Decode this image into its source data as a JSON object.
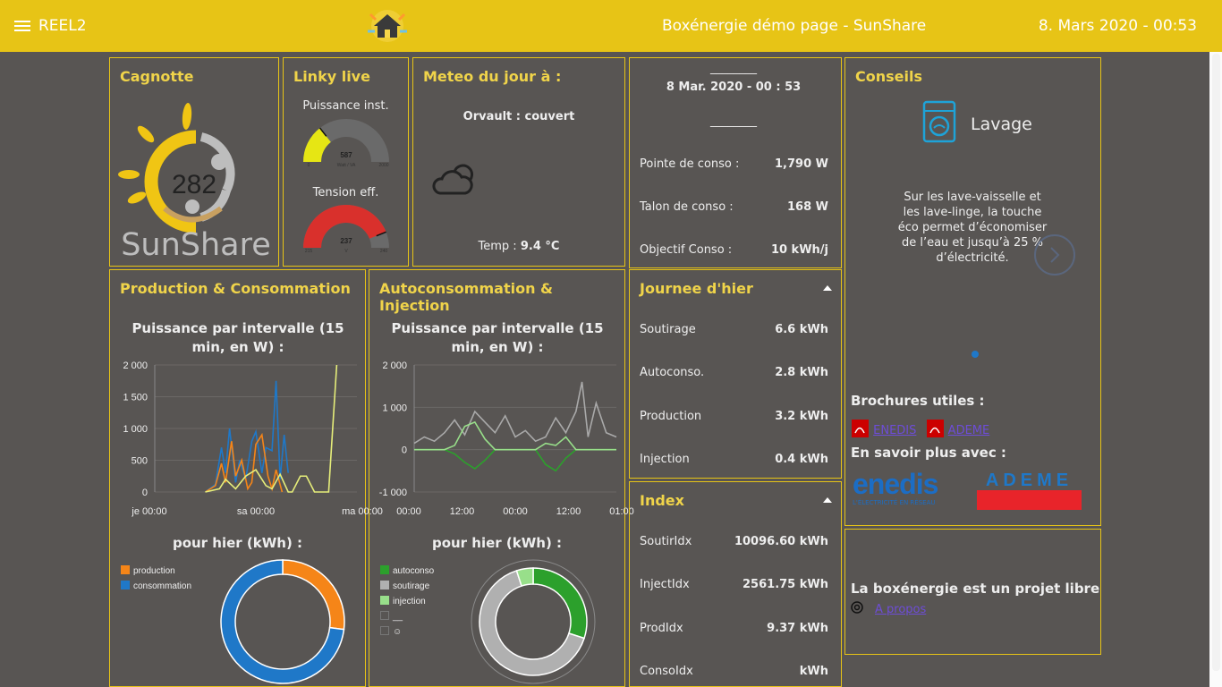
{
  "header": {
    "app_name": "REEL2",
    "page_title": "Boxénergie démo page - SunShare",
    "datetime": "8. Mars 2020 - 00:53"
  },
  "cagnotte": {
    "title": "Cagnotte",
    "value": "282",
    "brand": "SunShare"
  },
  "linky": {
    "title": "Linky live",
    "power_label": "Puissance inst.",
    "power_value": "587",
    "power_unit": "Watt / VA",
    "power_min": "0",
    "power_max": "2000",
    "power_level": 0.29,
    "voltage_label": "Tension eff.",
    "voltage_value": "237",
    "voltage_unit": "V",
    "voltage_min": "215",
    "voltage_max": "240",
    "voltage_level": 0.88
  },
  "meteo": {
    "title": "Meteo du jour à :",
    "location": "Orvault : couvert",
    "temp_label": "Temp :",
    "temp_value": "9.4 °C",
    "icon": "cloudy-night-icon"
  },
  "summary": {
    "line_top": "________",
    "datetime": "8 Mar. 2020 - 00 : 53",
    "line_bottom": "________",
    "rows": [
      {
        "label": "Pointe de conso :",
        "value": "1,790 W"
      },
      {
        "label": "Talon de conso :",
        "value": "168 W"
      },
      {
        "label": "Objectif Conso :",
        "value": "10 kWh/j"
      }
    ]
  },
  "conseils": {
    "title": "Conseils",
    "tip_title": "Lavage",
    "tip_text": "Sur les lave-vaisselle et les lave-linge, la touche éco permet d’économiser de l’eau et jusqu’à 25 % d’électricité.",
    "brochures_title": "Brochures utiles :",
    "brochure_links": [
      "ENEDIS",
      "ADEME"
    ],
    "more_title": "En savoir plus avec :",
    "enedis_logo": "enedis",
    "enedis_tagline": "L'ÉLECTRICITÉ EN RÉSEAU",
    "ademe_logo": "ADEME"
  },
  "projet": {
    "text": "La boxénergie est un projet libre",
    "link": "A propos"
  },
  "production": {
    "title": "Production & Consommation",
    "chart_title": "Puissance par intervalle (15 min, en W) :",
    "donut_title": "pour hier (kWh) :",
    "legend": [
      "production",
      "consommation"
    ]
  },
  "autoconso": {
    "title": "Autoconsommation & Injection",
    "chart_title": "Puissance par intervalle (15 min, en W) :",
    "donut_title": "pour hier (kWh) :",
    "legend": [
      "autoconso",
      "soutirage",
      "injection",
      "__",
      "☺"
    ]
  },
  "journee": {
    "title": "Journee d'hier",
    "rows": [
      {
        "label": "Soutirage",
        "value": "6.6 kWh"
      },
      {
        "label": "Autoconso.",
        "value": "2.8 kWh"
      },
      {
        "label": "Production",
        "value": "3.2 kWh"
      },
      {
        "label": "Injection",
        "value": "0.4 kWh"
      }
    ]
  },
  "index": {
    "title": "Index",
    "rows": [
      {
        "label": "SoutirIdx",
        "value": "10096.60 kWh"
      },
      {
        "label": "InjectIdx",
        "value": "2561.75 kWh"
      },
      {
        "label": "ProdIdx",
        "value": "9.37 kWh"
      },
      {
        "label": "ConsoIdx",
        "value": "kWh"
      }
    ]
  },
  "colors": {
    "accent": "#e7c416",
    "background": "#585553",
    "production": "#f58518",
    "consommation": "#1f78c8",
    "autoconso": "#2ca02c",
    "soutirage": "#b0b0b0",
    "injection": "#98df8a"
  },
  "chart_data": [
    {
      "type": "line",
      "title": "Puissance par intervalle (15 min, en W) :",
      "x_ticks": [
        "je 00:00",
        "sa 00:00",
        "ma 00:00"
      ],
      "ylim": [
        0,
        2000
      ],
      "y_ticks": [
        "2 000",
        "1 500",
        "1 000",
        "500",
        "0"
      ],
      "series": [
        {
          "name": "consommation",
          "x": [
            0.25,
            0.3,
            0.33,
            0.35,
            0.37,
            0.4,
            0.42,
            0.45,
            0.48,
            0.5,
            0.53,
            0.55,
            0.58,
            0.6,
            0.62,
            0.64,
            0.66
          ],
          "values": [
            0,
            120,
            700,
            300,
            1000,
            150,
            500,
            200,
            800,
            950,
            300,
            700,
            650,
            1750,
            200,
            900,
            300
          ]
        },
        {
          "name": "production",
          "x": [
            0.25,
            0.3,
            0.33,
            0.35,
            0.38,
            0.4,
            0.43,
            0.46,
            0.48,
            0.5,
            0.53,
            0.56,
            0.58,
            0.6,
            0.63
          ],
          "values": [
            0,
            100,
            450,
            150,
            800,
            250,
            500,
            50,
            150,
            750,
            900,
            250,
            50,
            350,
            0
          ]
        },
        {
          "name": "__",
          "x": [
            0.25,
            0.32,
            0.35,
            0.4,
            0.45,
            0.5,
            0.55,
            0.58,
            0.62,
            0.66,
            0.68,
            0.72,
            0.75,
            0.79,
            0.82,
            0.86,
            0.9
          ],
          "values": [
            0,
            50,
            200,
            50,
            250,
            350,
            100,
            50,
            280,
            0,
            0,
            250,
            250,
            0,
            0,
            0,
            2000
          ]
        }
      ]
    },
    {
      "type": "line",
      "title": "Puissance par intervalle (15 min, en W) :",
      "x_ticks": [
        "00:00",
        "12:00",
        "00:00",
        "12:00",
        "01:00"
      ],
      "ylim": [
        -1000,
        2000
      ],
      "y_ticks": [
        "2 000",
        "1 000",
        "0",
        "-1 000"
      ],
      "series": [
        {
          "name": "soutirage",
          "x": [
            0,
            0.05,
            0.1,
            0.15,
            0.2,
            0.25,
            0.3,
            0.35,
            0.4,
            0.45,
            0.5,
            0.55,
            0.6,
            0.65,
            0.7,
            0.75,
            0.8,
            0.83,
            0.86,
            0.9,
            0.95,
            1
          ],
          "values": [
            150,
            300,
            200,
            400,
            700,
            350,
            900,
            650,
            400,
            800,
            300,
            450,
            200,
            300,
            750,
            400,
            900,
            1600,
            300,
            1100,
            400,
            300
          ]
        },
        {
          "name": "autoconso",
          "x": [
            0,
            0.15,
            0.2,
            0.25,
            0.3,
            0.35,
            0.4,
            0.6,
            0.65,
            0.7,
            0.75,
            0.8,
            1
          ],
          "values": [
            0,
            0,
            -100,
            -300,
            -450,
            -250,
            0,
            0,
            -350,
            -500,
            -200,
            0,
            0
          ]
        },
        {
          "name": "injection",
          "x": [
            0,
            0.15,
            0.2,
            0.25,
            0.3,
            0.35,
            0.4,
            0.6,
            0.65,
            0.7,
            0.75,
            0.8,
            1
          ],
          "values": [
            0,
            0,
            100,
            550,
            650,
            250,
            0,
            0,
            150,
            100,
            300,
            0,
            0
          ]
        }
      ]
    },
    {
      "type": "pie",
      "title": "pour hier (kWh) :",
      "categories": [
        "production",
        "consommation"
      ],
      "values": [
        0.27,
        0.73
      ]
    },
    {
      "type": "pie",
      "title": "pour hier (kWh) :",
      "categories": [
        "autoconso",
        "soutirage",
        "injection"
      ],
      "values": [
        0.3,
        0.65,
        0.05
      ]
    }
  ]
}
